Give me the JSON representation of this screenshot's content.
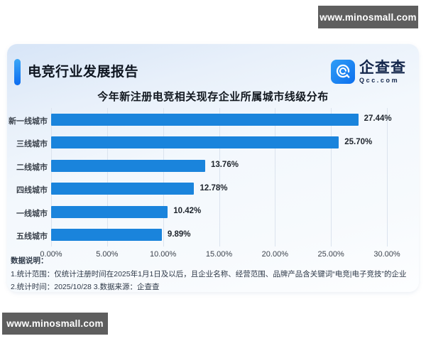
{
  "watermark_top": {
    "text": "www.minosmall.com"
  },
  "watermark_bottom": {
    "text": "www.minosmall.com"
  },
  "header": {
    "title": "电竞行业发展报告",
    "logo": {
      "name": "企查查",
      "domain": "Qcc.com"
    }
  },
  "chart_data": {
    "type": "bar",
    "orientation": "horizontal",
    "title": "今年新注册电竞相关现存企业所属城市线级分布",
    "categories": [
      "新一线城市",
      "三线城市",
      "二线城市",
      "四线城市",
      "一线城市",
      "五线城市"
    ],
    "values": [
      27.44,
      25.7,
      13.76,
      12.78,
      10.42,
      9.89
    ],
    "value_labels": [
      "27.44%",
      "25.70%",
      "13.76%",
      "12.78%",
      "10.42%",
      "9.89%"
    ],
    "x_ticks": [
      "0.00%",
      "5.00%",
      "10.00%",
      "15.00%",
      "20.00%",
      "25.00%",
      "30.00%"
    ],
    "xlim": [
      0,
      30
    ],
    "grid": true,
    "bar_color": "#1a84dc",
    "xlabel": "",
    "ylabel": ""
  },
  "footer": {
    "heading": "数据说明：",
    "note1": "1.统计范围：仅统计注册时间在2025年1月1日及以后，且企业名称、经营范围、品牌产品含关键词“电竞|电子竞技”的企业",
    "note2": "2.统计时间：2025/10/28 3.数据来源：企查查"
  },
  "colors": {
    "bar": "#1a84dc",
    "accent_top": "#3ba7f7",
    "accent_bottom": "#0c6cf0",
    "watermark_bg": "#5e5e5e",
    "logo_text": "#14274c"
  }
}
